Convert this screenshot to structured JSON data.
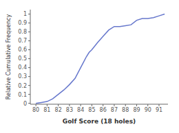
{
  "chart_data": {
    "type": "line",
    "x": [
      80,
      80.5,
      81,
      81.5,
      82,
      82.5,
      83,
      83.5,
      84,
      84.25,
      84.5,
      84.75,
      85,
      85.5,
      86,
      86.5,
      87,
      87.5,
      88,
      88.5,
      89,
      89.5,
      90,
      90.5,
      91,
      91.5
    ],
    "values": [
      0.0,
      0.01,
      0.02,
      0.05,
      0.1,
      0.15,
      0.21,
      0.28,
      0.4,
      0.46,
      0.52,
      0.57,
      0.6,
      0.68,
      0.75,
      0.82,
      0.86,
      0.86,
      0.87,
      0.88,
      0.93,
      0.95,
      0.95,
      0.96,
      0.98,
      1.0
    ],
    "color": "#6677cc",
    "xlim": [
      79.5,
      91.8
    ],
    "ylim": [
      -0.01,
      1.05
    ],
    "xticks": [
      80,
      81,
      82,
      83,
      84,
      85,
      86,
      87,
      88,
      89,
      90,
      91
    ],
    "yticks": [
      0,
      0.1,
      0.2,
      0.3,
      0.4,
      0.5,
      0.6,
      0.7,
      0.8,
      0.9,
      1
    ],
    "xlabel": "Golf Score (18 holes)",
    "ylabel": "Relative Cumulative Frequency",
    "grid": false
  }
}
